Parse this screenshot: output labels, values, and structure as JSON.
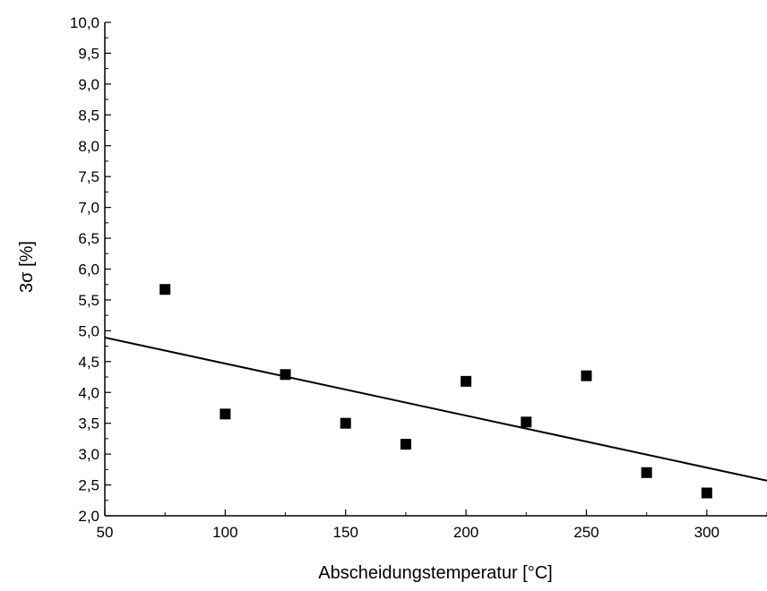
{
  "chart_data": {
    "type": "scatter",
    "xlabel": "Abscheidungstemperatur [°C]",
    "ylabel": "3σ [%]",
    "xlim": [
      50,
      325
    ],
    "ylim": [
      2.0,
      10.0
    ],
    "x_ticks": [
      50,
      100,
      150,
      200,
      250,
      300
    ],
    "x_tick_labels": [
      "50",
      "100",
      "150",
      "200",
      "250",
      "300"
    ],
    "y_ticks": [
      2.0,
      2.5,
      3.0,
      3.5,
      4.0,
      4.5,
      5.0,
      5.5,
      6.0,
      6.5,
      7.0,
      7.5,
      8.0,
      8.5,
      9.0,
      9.5,
      10.0
    ],
    "y_tick_labels": [
      "2,0",
      "2,5",
      "3,0",
      "3,5",
      "4,0",
      "4,5",
      "5,0",
      "5,5",
      "6,0",
      "6,5",
      "7,0",
      "7,5",
      "8,0",
      "8,5",
      "9,0",
      "9,5",
      "10,0"
    ],
    "grid": false,
    "series": [
      {
        "marker": "square",
        "color": "#000000",
        "x": [
          75,
          100,
          125,
          150,
          175,
          200,
          225,
          250,
          275,
          300
        ],
        "y": [
          5.67,
          3.65,
          4.29,
          3.5,
          3.16,
          4.18,
          3.52,
          4.27,
          2.7,
          2.37
        ]
      }
    ],
    "fit_line": {
      "color": "#000000",
      "x": [
        50,
        325
      ],
      "y": [
        4.89,
        2.57
      ]
    }
  }
}
